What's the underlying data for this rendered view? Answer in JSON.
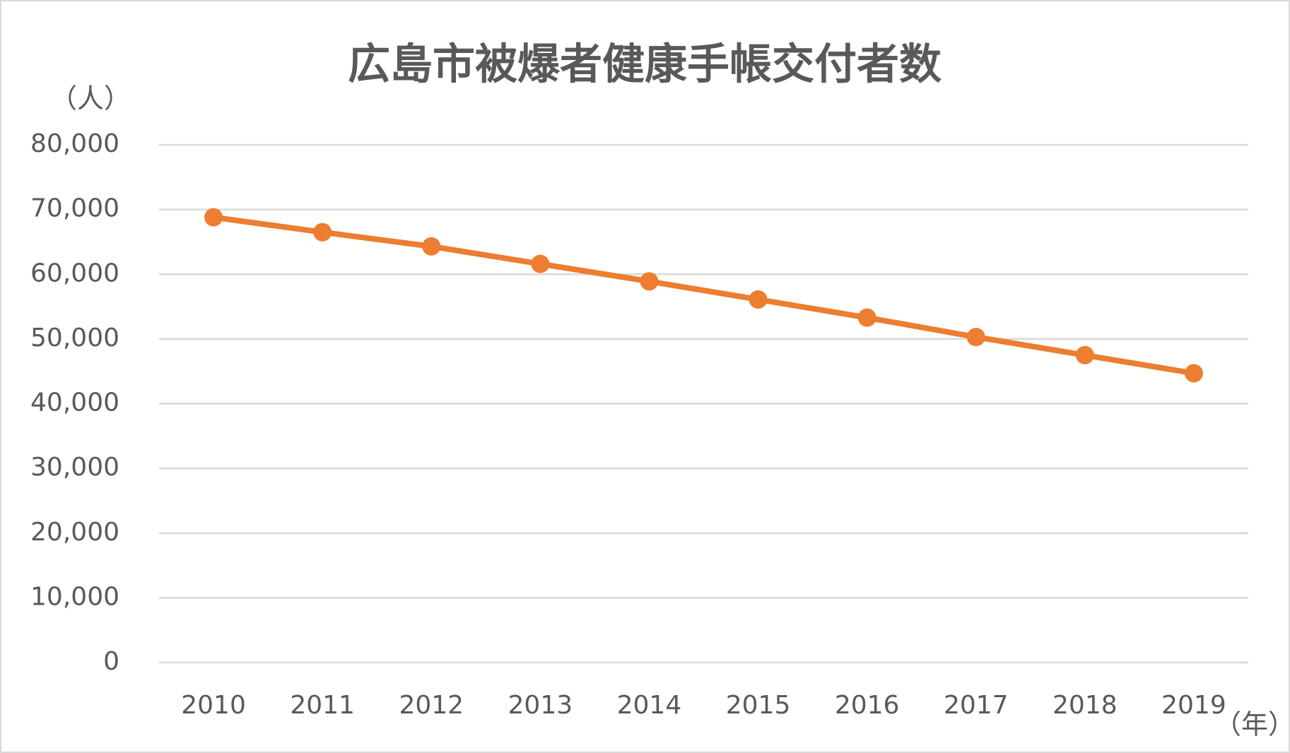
{
  "chart_data": {
    "type": "line",
    "title": "広島市被爆者健康手帳交付者数",
    "y_label": "（人）",
    "x_label": "（年）",
    "categories": [
      "2010",
      "2011",
      "2012",
      "2013",
      "2014",
      "2015",
      "2016",
      "2017",
      "2018",
      "2019"
    ],
    "series": [
      {
        "name": "被爆者健康手帳交付者数",
        "color": "#ed7d31",
        "values": [
          68800,
          66500,
          64300,
          61600,
          58900,
          56100,
          53300,
          50300,
          47500,
          44700
        ]
      }
    ],
    "ylim": [
      0,
      80000
    ],
    "yticks": [
      0,
      {
        "value": 10000,
        "label": "10,000"
      },
      {
        "value": 20000,
        "label": "20,000"
      },
      {
        "value": 30000,
        "label": "30,000"
      },
      {
        "value": 40000,
        "label": "40,000"
      },
      {
        "value": 50000,
        "label": "50,000"
      },
      {
        "value": 60000,
        "label": "60,000"
      },
      {
        "value": 70000,
        "label": "70,000"
      },
      {
        "value": 80000,
        "label": "80,000"
      }
    ],
    "grid": true
  }
}
